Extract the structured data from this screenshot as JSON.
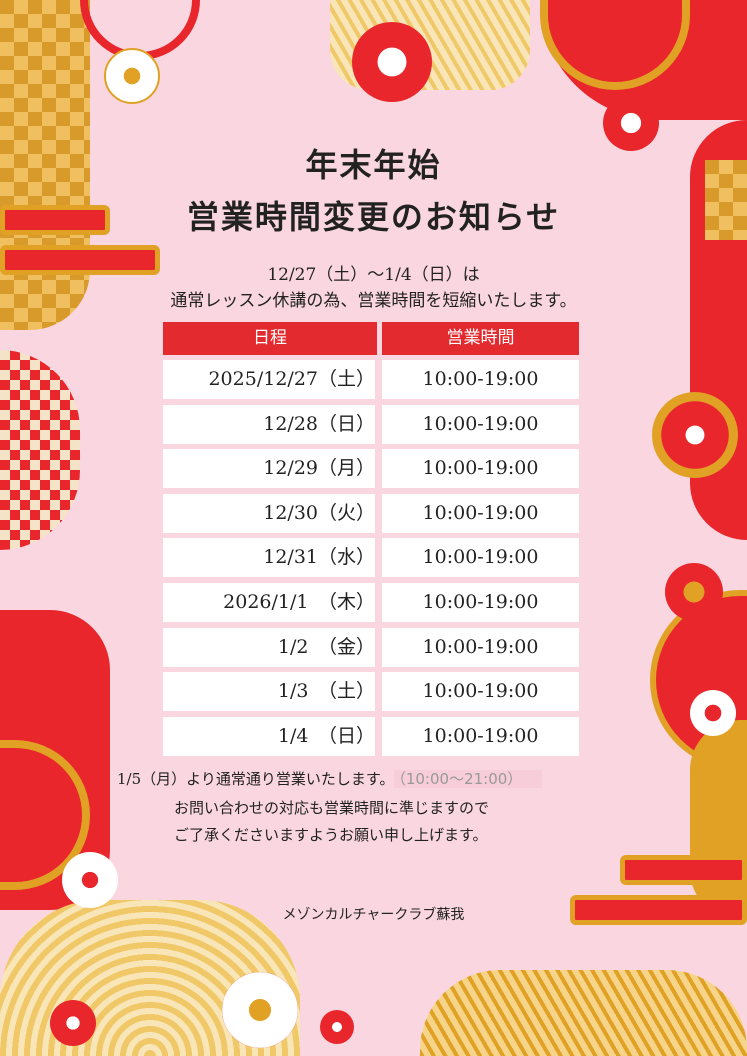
{
  "title": {
    "line1": "年末年始",
    "line2": "営業時間変更のお知らせ"
  },
  "intro": {
    "line1": "12/27（土）～1/4（日）は",
    "line2": "通常レッスン休講の為、営業時間を短縮いたします。"
  },
  "table": {
    "headers": [
      "日程",
      "営業時間"
    ],
    "rows": [
      {
        "year": "2025/",
        "date": "12/27（土）",
        "hours": "10:00-19:00"
      },
      {
        "date": "12/28（日）",
        "hours": "10:00-19:00"
      },
      {
        "date": "12/29（月）",
        "hours": "10:00-19:00"
      },
      {
        "date": "12/30（火）",
        "hours": "10:00-19:00"
      },
      {
        "date": "12/31（水）",
        "hours": "10:00-19:00"
      },
      {
        "year": "2026/",
        "date": "1/1　（木）",
        "hours": "10:00-19:00"
      },
      {
        "date": "1/2　（金）",
        "hours": "10:00-19:00"
      },
      {
        "date": "1/3　（土）",
        "hours": "10:00-19:00"
      },
      {
        "date": "1/4　（日）",
        "hours": "10:00-19:00"
      }
    ]
  },
  "notes": {
    "line1": "1/5（月）より通常通り営業いたします。",
    "line1_hours": "（10:00～21:00）",
    "line2": "お問い合わせの対応も営業時間に準じますので",
    "line3": "ご了承くださいますようお願い申し上げます。"
  },
  "club_name": "メゾンカルチャークラブ蘇我",
  "colors": {
    "background": "#f9d6e0",
    "accent_red": "#e8262c",
    "accent_gold": "#e0a125",
    "header_red": "#e32a2e"
  }
}
